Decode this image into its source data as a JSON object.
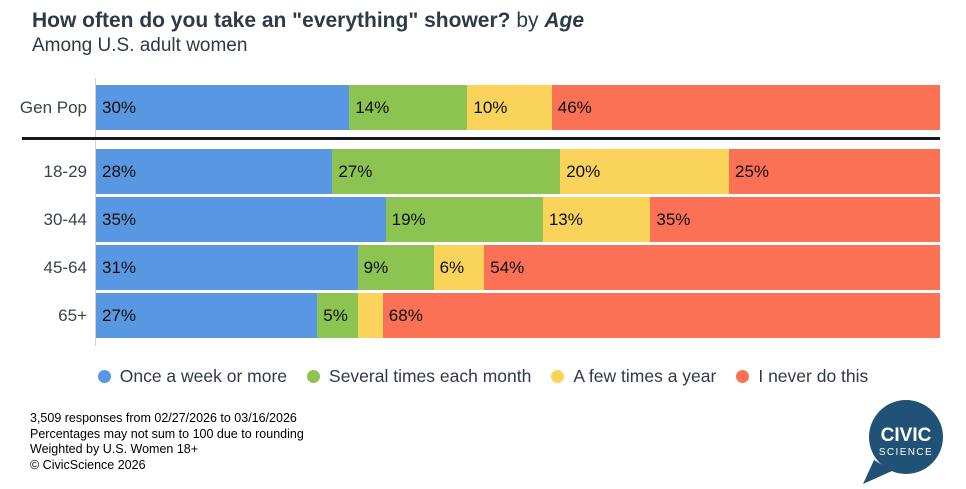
{
  "header": {
    "title_main": "How often do you take an \"everything\" shower?",
    "title_connector": " by ",
    "title_emphasis": "Age",
    "subtitle": "Among U.S. adult women"
  },
  "chart_data": {
    "type": "bar",
    "variant": "horizontal-stacked-100",
    "title": "How often do you take an \"everything\" shower? by Age",
    "subtitle": "Among U.S. adult women",
    "categories": [
      "Gen Pop",
      "18-29",
      "30-44",
      "45-64",
      "65+"
    ],
    "series": [
      {
        "name": "Once a week or more",
        "color": "#5997E2",
        "values": [
          30,
          28,
          35,
          31,
          27
        ]
      },
      {
        "name": "Several times each month",
        "color": "#8CC351",
        "values": [
          14,
          27,
          19,
          9,
          5
        ]
      },
      {
        "name": "A few times a year",
        "color": "#FAD35B",
        "values": [
          10,
          20,
          13,
          6,
          3
        ]
      },
      {
        "name": "I never do this",
        "color": "#FA7156",
        "values": [
          46,
          25,
          35,
          54,
          68
        ]
      }
    ],
    "value_labels": [
      [
        "30%",
        "14%",
        "10%",
        "46%"
      ],
      [
        "28%",
        "27%",
        "20%",
        "25%"
      ],
      [
        "35%",
        "19%",
        "13%",
        "35%"
      ],
      [
        "31%",
        "9%",
        "6%",
        "54%"
      ],
      [
        "27%",
        "5%",
        "",
        "68%"
      ]
    ],
    "xlim": [
      0,
      100
    ],
    "grid": false,
    "legend_position": "bottom-center",
    "notes": "Black separator line between Gen Pop row and the age-group rows; 65+ 'A few times a year' segment (~3%) is drawn without a visible value label"
  },
  "footer": {
    "lines": [
      "3,509 responses from 02/27/2026 to 03/16/2026",
      "Percentages may not sum to 100 due to rounding",
      "Weighted by U.S. Women 18+",
      "© CivicScience 2026"
    ]
  },
  "logo": {
    "line1": "CIVIC",
    "line2": "SCIENCE",
    "color": "#1F5274"
  }
}
